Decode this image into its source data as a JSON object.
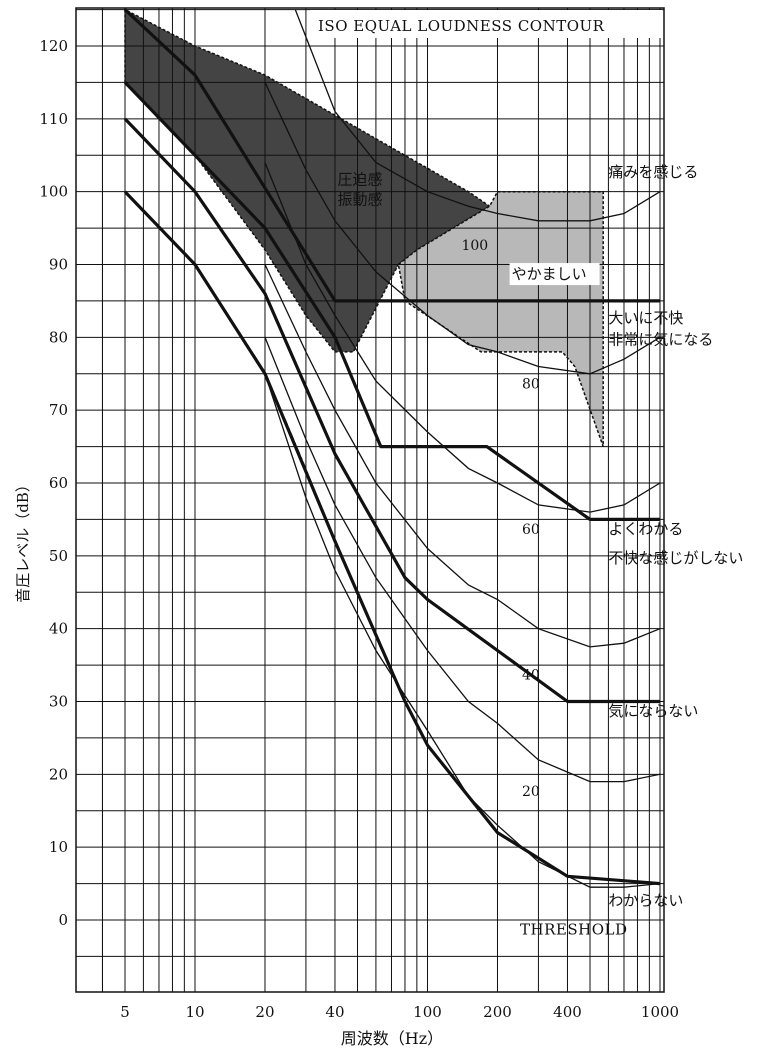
{
  "chart_data": {
    "type": "line",
    "title": "ISO EQUAL LOUDNESS CONTOUR",
    "xlabel": "周波数（Hz）",
    "ylabel": "音圧レベル（dB）",
    "x_scale": "log",
    "xlim": [
      5,
      1000
    ],
    "ylim": [
      -10,
      125
    ],
    "grid": true,
    "x_ticks": [
      {
        "value": 5,
        "label": "5"
      },
      {
        "value": 10,
        "label": "10"
      },
      {
        "value": 20,
        "label": "20"
      },
      {
        "value": 40,
        "label": "40"
      },
      {
        "value": 100,
        "label": "100"
      },
      {
        "value": 200,
        "label": "200"
      },
      {
        "value": 400,
        "label": "400"
      },
      {
        "value": 1000,
        "label": "1000"
      }
    ],
    "y_ticks": [
      {
        "value": 0,
        "label": "0"
      },
      {
        "value": 10,
        "label": "10"
      },
      {
        "value": 20,
        "label": "20"
      },
      {
        "value": 30,
        "label": "30"
      },
      {
        "value": 40,
        "label": "40"
      },
      {
        "value": 50,
        "label": "50"
      },
      {
        "value": 60,
        "label": "60"
      },
      {
        "value": 70,
        "label": "70"
      },
      {
        "value": 80,
        "label": "80"
      },
      {
        "value": 90,
        "label": "90"
      },
      {
        "value": 100,
        "label": "100"
      },
      {
        "value": 110,
        "label": "110"
      },
      {
        "value": 120,
        "label": "120"
      }
    ],
    "iso_contours": [
      {
        "label": "THRESHOLD",
        "points": [
          [
            20,
            75
          ],
          [
            30,
            58
          ],
          [
            40,
            48
          ],
          [
            60,
            37
          ],
          [
            100,
            26
          ],
          [
            150,
            17
          ],
          [
            200,
            13
          ],
          [
            300,
            8
          ],
          [
            500,
            4.5
          ],
          [
            700,
            4.5
          ],
          [
            1000,
            5
          ]
        ]
      },
      {
        "label": "20",
        "points": [
          [
            20,
            80
          ],
          [
            30,
            66
          ],
          [
            40,
            57
          ],
          [
            60,
            47
          ],
          [
            100,
            37
          ],
          [
            150,
            30
          ],
          [
            200,
            27
          ],
          [
            300,
            22
          ],
          [
            500,
            19
          ],
          [
            700,
            19
          ],
          [
            1000,
            20
          ]
        ]
      },
      {
        "label": "40",
        "points": [
          [
            20,
            90
          ],
          [
            30,
            78
          ],
          [
            40,
            70
          ],
          [
            60,
            60
          ],
          [
            100,
            51
          ],
          [
            150,
            46
          ],
          [
            200,
            44
          ],
          [
            300,
            40
          ],
          [
            500,
            37.5
          ],
          [
            700,
            38
          ],
          [
            1000,
            40
          ]
        ]
      },
      {
        "label": "60",
        "points": [
          [
            20,
            104
          ],
          [
            30,
            90
          ],
          [
            40,
            83
          ],
          [
            60,
            74
          ],
          [
            100,
            67
          ],
          [
            150,
            62
          ],
          [
            200,
            60
          ],
          [
            300,
            57
          ],
          [
            500,
            56
          ],
          [
            700,
            57
          ],
          [
            1000,
            60
          ]
        ]
      },
      {
        "label": "80",
        "points": [
          [
            20,
            115
          ],
          [
            30,
            103
          ],
          [
            40,
            96
          ],
          [
            60,
            89
          ],
          [
            100,
            83
          ],
          [
            150,
            79
          ],
          [
            200,
            78
          ],
          [
            300,
            76
          ],
          [
            500,
            75
          ],
          [
            700,
            77
          ],
          [
            1000,
            80
          ]
        ]
      },
      {
        "label": "100",
        "points": [
          [
            27,
            125
          ],
          [
            40,
            111
          ],
          [
            60,
            104
          ],
          [
            100,
            100
          ],
          [
            150,
            98
          ],
          [
            200,
            97
          ],
          [
            300,
            96
          ],
          [
            500,
            96
          ],
          [
            700,
            97
          ],
          [
            1000,
            100
          ]
        ]
      }
    ],
    "annoyance_curves": [
      {
        "label": "わからない",
        "points": [
          [
            5,
            100
          ],
          [
            10,
            90
          ],
          [
            20,
            75
          ],
          [
            40,
            52
          ],
          [
            80,
            30
          ],
          [
            100,
            24
          ],
          [
            200,
            12
          ],
          [
            400,
            6
          ],
          [
            1000,
            5
          ]
        ]
      },
      {
        "label": "気にならない",
        "points": [
          [
            5,
            110
          ],
          [
            10,
            100
          ],
          [
            20,
            86
          ],
          [
            40,
            64
          ],
          [
            80,
            47
          ],
          [
            100,
            44
          ],
          [
            200,
            37
          ],
          [
            400,
            30
          ],
          [
            1000,
            30
          ]
        ]
      },
      {
        "label": "不快な感じがしない",
        "points": [
          [
            5,
            115
          ],
          [
            10,
            105
          ],
          [
            20,
            95
          ],
          [
            40,
            80
          ],
          [
            63,
            65
          ],
          [
            180,
            65
          ],
          [
            500,
            55
          ],
          [
            1000,
            55
          ]
        ]
      },
      {
        "label": "非常に気になる",
        "points": [
          [
            5,
            125
          ],
          [
            10,
            116
          ],
          [
            40,
            85
          ],
          [
            1000,
            85
          ]
        ]
      }
    ],
    "dashdot_line": {
      "points": [
        [
          20,
          75
        ],
        [
          25,
          68
        ],
        [
          30,
          62
        ],
        [
          40,
          52
        ]
      ]
    },
    "regions": [
      {
        "label_lines": [
          "圧迫感",
          "振動感"
        ],
        "fill": "#444444",
        "polygon": [
          [
            5,
            125
          ],
          [
            5,
            115
          ],
          [
            10,
            105
          ],
          [
            20,
            92
          ],
          [
            30,
            83
          ],
          [
            40,
            78
          ],
          [
            48,
            78
          ],
          [
            75,
            90
          ],
          [
            90,
            92
          ],
          [
            185,
            98
          ],
          [
            150,
            100
          ],
          [
            20,
            116
          ],
          [
            10,
            120
          ],
          [
            5,
            125
          ]
        ]
      },
      {
        "label_lines": [],
        "fill": "#b8b8b8",
        "polygon": [
          [
            75,
            90
          ],
          [
            90,
            92
          ],
          [
            185,
            98
          ],
          [
            200,
            100
          ],
          [
            570,
            100
          ],
          [
            570,
            65
          ],
          [
            430,
            76
          ],
          [
            380,
            78
          ],
          [
            170,
            78
          ],
          [
            80,
            85
          ]
        ]
      }
    ],
    "annotations": [
      {
        "text": "痛みを感じる",
        "x": 600,
        "y": 102
      },
      {
        "text": "100",
        "x": 140,
        "y": 92
      },
      {
        "text": "やかましい",
        "x": 230,
        "y": 88
      },
      {
        "text": "大いに不快",
        "x": 600,
        "y": 82
      },
      {
        "text": "非常に気になる",
        "x": 600,
        "y": 79
      },
      {
        "text": "80",
        "x": 255,
        "y": 73
      },
      {
        "text": "60",
        "x": 255,
        "y": 53
      },
      {
        "text": "よくわかる",
        "x": 600,
        "y": 53
      },
      {
        "text": "不快な感じがしない",
        "x": 600,
        "y": 49
      },
      {
        "text": "40",
        "x": 255,
        "y": 33
      },
      {
        "text": "気にならない",
        "x": 600,
        "y": 28
      },
      {
        "text": "20",
        "x": 255,
        "y": 17
      },
      {
        "text": "わからない",
        "x": 600,
        "y": 2
      },
      {
        "text": "THRESHOLD",
        "x": 250,
        "y": -2
      }
    ],
    "colors": {
      "dark_region": "#444444",
      "light_region": "#b8b8b8",
      "ink": "#111111"
    }
  }
}
